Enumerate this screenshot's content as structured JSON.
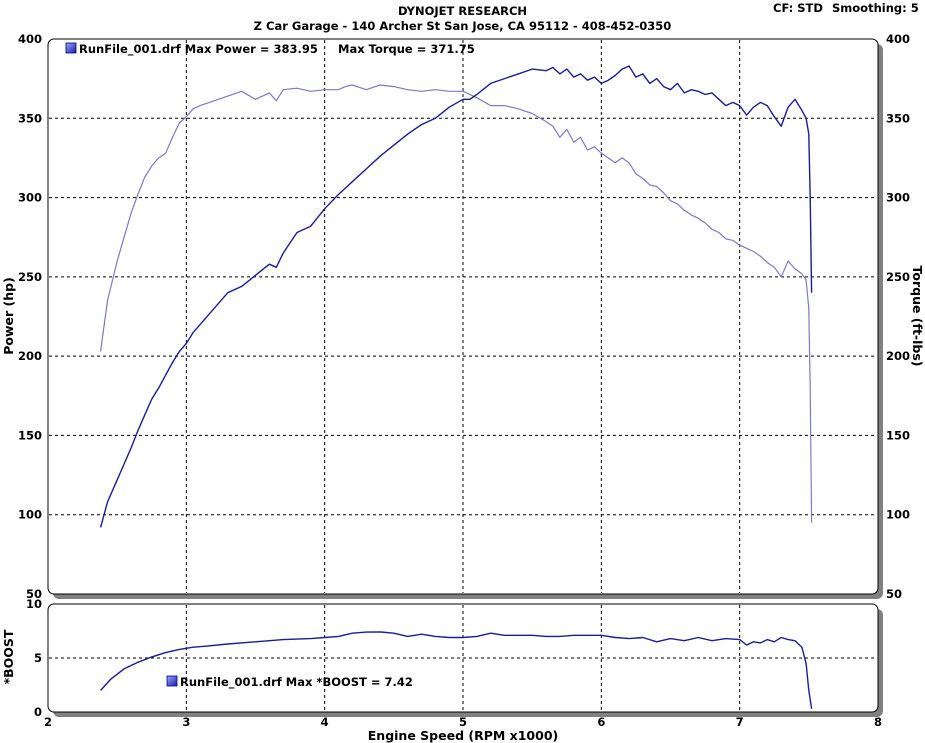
{
  "header": {
    "title": "DYNOJET RESEARCH",
    "subtitle": "Z Car Garage - 140 Archer St San Jose, CA 95112 - 408-452-0350",
    "cf": "CF: STD",
    "smoothing": "Smoothing: 5"
  },
  "colors": {
    "power": "#1c1c96",
    "torque": "#7a7ac4",
    "boost": "#1c1c96",
    "legend_icon": "#3b3bd6"
  },
  "chart_data": [
    {
      "type": "line",
      "legend": {
        "icon": "square-icon",
        "text": "RunFile_001.drf Max Power = 383.95",
        "text2": "Max Torque = 371.75",
        "placement": "top-left"
      },
      "xlabel": "",
      "ylabel": "Power (hp)",
      "y2label": "Torque (ft-lbs)",
      "xlim": [
        2,
        8
      ],
      "ylim": [
        50,
        400
      ],
      "y2lim": [
        50,
        400
      ],
      "xticks": [
        "2",
        "3",
        "4",
        "5",
        "6",
        "7",
        "8"
      ],
      "yticks": [
        "50",
        "100",
        "150",
        "200",
        "250",
        "300",
        "350",
        "400"
      ],
      "y2ticks": [
        "50",
        "100",
        "150",
        "200",
        "250",
        "300",
        "350",
        "400"
      ],
      "grid": true,
      "series": [
        {
          "name": "Power",
          "axis": "left",
          "x": [
            2.38,
            2.43,
            2.5,
            2.55,
            2.6,
            2.65,
            2.7,
            2.75,
            2.8,
            2.85,
            2.9,
            2.95,
            3.0,
            3.05,
            3.1,
            3.2,
            3.3,
            3.4,
            3.5,
            3.6,
            3.65,
            3.7,
            3.8,
            3.9,
            4.0,
            4.1,
            4.15,
            4.2,
            4.3,
            4.4,
            4.5,
            4.6,
            4.7,
            4.8,
            4.9,
            5.0,
            5.05,
            5.1,
            5.2,
            5.3,
            5.4,
            5.5,
            5.6,
            5.65,
            5.7,
            5.75,
            5.8,
            5.85,
            5.9,
            5.95,
            6.0,
            6.05,
            6.1,
            6.15,
            6.2,
            6.25,
            6.3,
            6.35,
            6.4,
            6.45,
            6.5,
            6.55,
            6.6,
            6.65,
            6.7,
            6.75,
            6.8,
            6.85,
            6.9,
            6.95,
            7.0,
            7.05,
            7.1,
            7.15,
            7.2,
            7.25,
            7.3,
            7.35,
            7.4,
            7.45,
            7.48,
            7.5,
            7.51,
            7.52
          ],
          "values": [
            92,
            108,
            122,
            132,
            142,
            153,
            163,
            173,
            180,
            188,
            196,
            203,
            208,
            215,
            220,
            230,
            240,
            244,
            251,
            258,
            256,
            265,
            278,
            282,
            293,
            302,
            306,
            310,
            318,
            326,
            333,
            340,
            346,
            350,
            357,
            362,
            362,
            365,
            372,
            375,
            378,
            381,
            380,
            382,
            378,
            381,
            376,
            378,
            374,
            376,
            372,
            374,
            377,
            381,
            383,
            376,
            378,
            372,
            375,
            370,
            368,
            372,
            366,
            368,
            367,
            365,
            366,
            362,
            358,
            360,
            358,
            352,
            357,
            360,
            358,
            351,
            345,
            357,
            362,
            355,
            350,
            340,
            300,
            240
          ]
        },
        {
          "name": "Torque",
          "axis": "right",
          "x": [
            2.38,
            2.43,
            2.5,
            2.55,
            2.6,
            2.65,
            2.7,
            2.75,
            2.8,
            2.85,
            2.9,
            2.95,
            3.0,
            3.05,
            3.1,
            3.2,
            3.3,
            3.4,
            3.5,
            3.6,
            3.65,
            3.7,
            3.8,
            3.9,
            4.0,
            4.1,
            4.15,
            4.2,
            4.3,
            4.4,
            4.5,
            4.6,
            4.7,
            4.8,
            4.9,
            5.0,
            5.05,
            5.1,
            5.2,
            5.3,
            5.4,
            5.5,
            5.6,
            5.65,
            5.7,
            5.75,
            5.8,
            5.85,
            5.9,
            5.95,
            6.0,
            6.05,
            6.1,
            6.15,
            6.2,
            6.25,
            6.3,
            6.35,
            6.4,
            6.45,
            6.5,
            6.55,
            6.6,
            6.65,
            6.7,
            6.75,
            6.8,
            6.85,
            6.9,
            6.95,
            7.0,
            7.05,
            7.1,
            7.15,
            7.2,
            7.25,
            7.3,
            7.35,
            7.4,
            7.45,
            7.48,
            7.5,
            7.51,
            7.52
          ],
          "values": [
            203,
            235,
            260,
            275,
            290,
            302,
            313,
            320,
            325,
            328,
            338,
            347,
            351,
            356,
            358,
            361,
            364,
            367,
            362,
            366,
            361,
            368,
            369,
            367,
            368,
            368,
            370,
            371,
            368,
            371,
            370,
            368,
            367,
            368,
            367,
            367,
            365,
            363,
            358,
            358,
            356,
            353,
            348,
            345,
            338,
            343,
            335,
            338,
            330,
            332,
            328,
            325,
            322,
            325,
            322,
            315,
            312,
            308,
            307,
            303,
            298,
            296,
            292,
            289,
            287,
            284,
            280,
            278,
            274,
            273,
            270,
            268,
            266,
            263,
            259,
            256,
            250,
            260,
            255,
            252,
            248,
            230,
            180,
            95
          ]
        }
      ]
    },
    {
      "type": "line",
      "legend": {
        "icon": "square-icon",
        "text": "RunFile_001.drf Max *BOOST = 7.42",
        "placement": "center-left"
      },
      "xlabel": "Engine Speed (RPM x1000)",
      "ylabel": "*BOOST",
      "xlim": [
        2,
        8
      ],
      "ylim": [
        0,
        10
      ],
      "xticks": [
        "2",
        "3",
        "4",
        "5",
        "6",
        "7",
        "8"
      ],
      "yticks": [
        "0",
        "5",
        "10"
      ],
      "grid": true,
      "series": [
        {
          "name": "*BOOST",
          "x": [
            2.38,
            2.45,
            2.55,
            2.65,
            2.75,
            2.85,
            2.95,
            3.05,
            3.15,
            3.3,
            3.5,
            3.7,
            3.9,
            4.0,
            4.1,
            4.2,
            4.3,
            4.4,
            4.5,
            4.6,
            4.7,
            4.8,
            4.9,
            5.0,
            5.1,
            5.2,
            5.3,
            5.4,
            5.5,
            5.6,
            5.7,
            5.8,
            5.9,
            6.0,
            6.1,
            6.2,
            6.3,
            6.4,
            6.5,
            6.6,
            6.7,
            6.8,
            6.9,
            7.0,
            7.05,
            7.1,
            7.15,
            7.2,
            7.25,
            7.3,
            7.35,
            7.4,
            7.45,
            7.48,
            7.5,
            7.52
          ],
          "values": [
            2.0,
            3.0,
            4.0,
            4.6,
            5.1,
            5.5,
            5.8,
            6.0,
            6.1,
            6.3,
            6.5,
            6.7,
            6.8,
            6.9,
            7.0,
            7.3,
            7.4,
            7.42,
            7.3,
            7.0,
            7.2,
            7.0,
            6.9,
            6.9,
            7.0,
            7.3,
            7.1,
            7.1,
            7.1,
            7.0,
            7.0,
            7.1,
            7.1,
            7.1,
            6.9,
            6.8,
            6.9,
            6.5,
            6.8,
            6.6,
            6.9,
            6.6,
            6.8,
            6.7,
            6.2,
            6.5,
            6.4,
            6.7,
            6.5,
            6.9,
            6.7,
            6.6,
            6.0,
            4.5,
            2.0,
            0.3
          ]
        }
      ]
    }
  ]
}
